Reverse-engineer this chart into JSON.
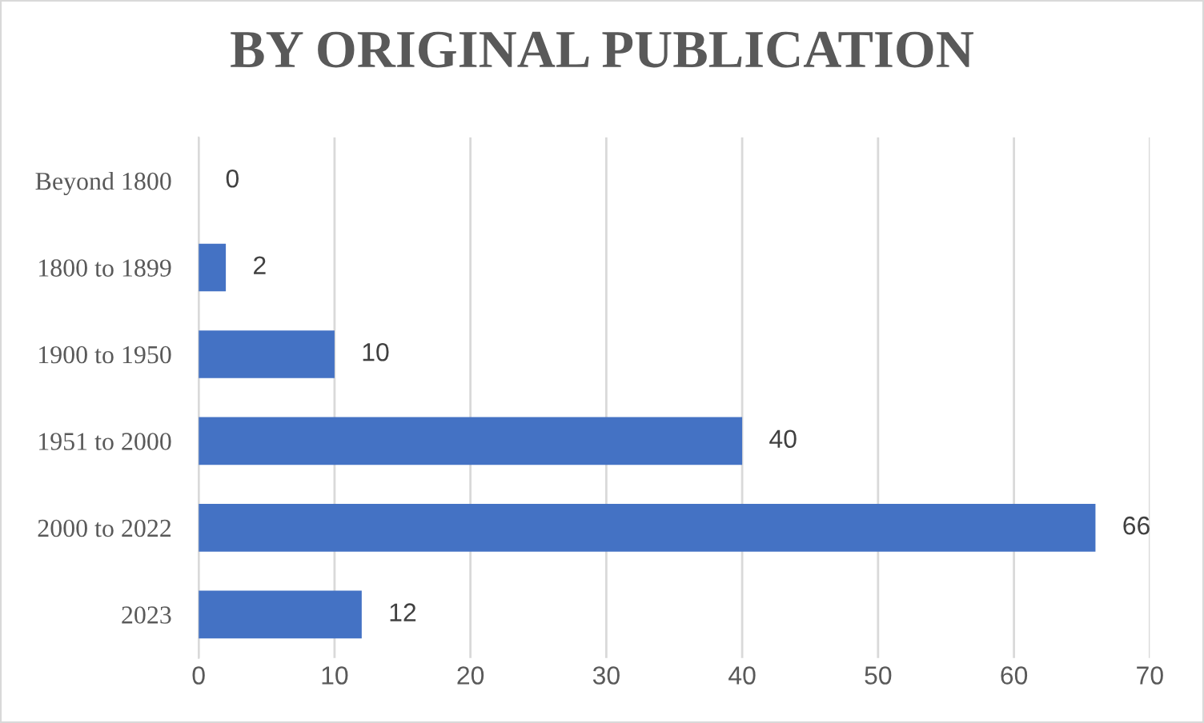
{
  "chart_data": {
    "type": "bar",
    "title": "BY ORIGINAL PUBLICATION",
    "orientation": "horizontal",
    "categories": [
      "Beyond 1800",
      "1800 to 1899",
      "1900 to 1950",
      "1951 to 2000",
      "2000 to 2022",
      "2023"
    ],
    "values": [
      0,
      2,
      10,
      40,
      66,
      12
    ],
    "color": "#4472c4",
    "xlim": [
      0,
      70
    ],
    "xticks": [
      0,
      10,
      20,
      30,
      40,
      50,
      60,
      70
    ],
    "grid": "x",
    "data_labels": true
  }
}
